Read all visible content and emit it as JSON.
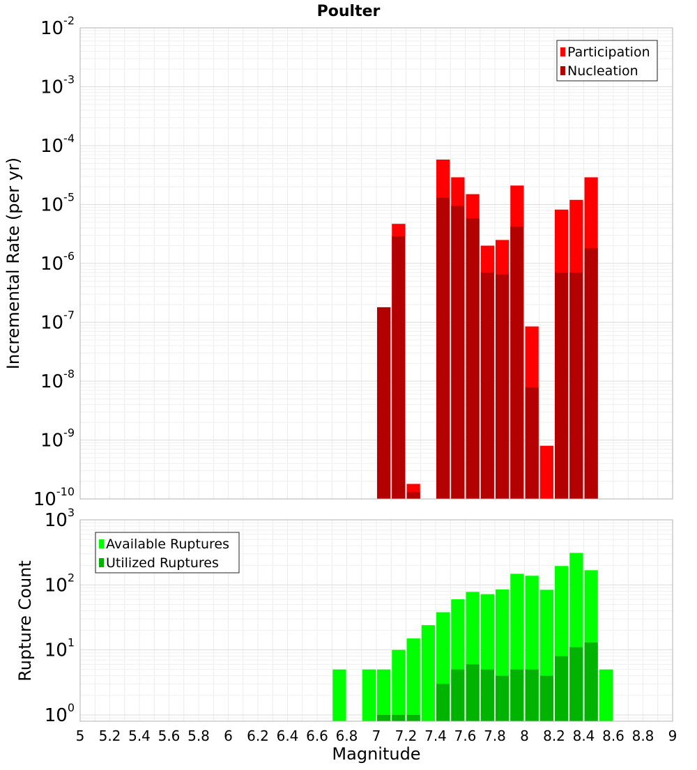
{
  "chart_data": [
    {
      "type": "bar",
      "title": "Poulter",
      "ylabel": "Incremental Rate (per yr)",
      "xlabel": "",
      "yscale": "log",
      "ylim": [
        1e-10,
        0.01
      ],
      "xlim": [
        5,
        9
      ],
      "bar_width": 0.1,
      "grid": true,
      "legend_position": "top-right",
      "x_tick_labels_shown": false,
      "y_tick_labels": [
        "10^-10",
        "10^-9",
        "10^-8",
        "10^-7",
        "10^-6",
        "10^-5",
        "10^-4",
        "10^-3",
        "10^-2"
      ],
      "series": [
        {
          "name": "Participation",
          "color": "#ff0000",
          "points": [
            {
              "x": 7.0,
              "y": 1.8e-07
            },
            {
              "x": 7.1,
              "y": 4.7e-06
            },
            {
              "x": 7.2,
              "y": 1.8e-10
            },
            {
              "x": 7.4,
              "y": 5.8e-05
            },
            {
              "x": 7.5,
              "y": 2.9e-05
            },
            {
              "x": 7.6,
              "y": 1.5e-05
            },
            {
              "x": 7.7,
              "y": 2e-06
            },
            {
              "x": 7.8,
              "y": 2.5e-06
            },
            {
              "x": 7.9,
              "y": 2.1e-05
            },
            {
              "x": 8.0,
              "y": 8.5e-08
            },
            {
              "x": 8.1,
              "y": 8e-10
            },
            {
              "x": 8.2,
              "y": 8.2e-06
            },
            {
              "x": 8.3,
              "y": 1.2e-05
            },
            {
              "x": 8.4,
              "y": 2.9e-05
            }
          ]
        },
        {
          "name": "Nucleation",
          "color": "#b30000",
          "points": [
            {
              "x": 7.0,
              "y": 1.8e-07
            },
            {
              "x": 7.1,
              "y": 2.9e-06
            },
            {
              "x": 7.2,
              "y": 1.3e-10
            },
            {
              "x": 7.4,
              "y": 1.3e-05
            },
            {
              "x": 7.5,
              "y": 9.5e-06
            },
            {
              "x": 7.6,
              "y": 5.8e-06
            },
            {
              "x": 7.7,
              "y": 7e-07
            },
            {
              "x": 7.8,
              "y": 6.5e-07
            },
            {
              "x": 7.9,
              "y": 4.2e-06
            },
            {
              "x": 8.0,
              "y": 7.8e-09
            },
            {
              "x": 8.2,
              "y": 7e-07
            },
            {
              "x": 8.3,
              "y": 7e-07
            },
            {
              "x": 8.4,
              "y": 1.8e-06
            }
          ]
        }
      ]
    },
    {
      "type": "bar",
      "title": "",
      "ylabel": "Rupture Count",
      "xlabel": "Magnitude",
      "yscale": "log",
      "ylim": [
        0.8,
        1000
      ],
      "xlim": [
        5,
        9
      ],
      "bar_width": 0.1,
      "grid": true,
      "legend_position": "top-left",
      "x_tick_labels": [
        "5",
        "5.2",
        "5.4",
        "5.6",
        "5.8",
        "6",
        "6.2",
        "6.4",
        "6.6",
        "6.8",
        "7",
        "7.2",
        "7.4",
        "7.6",
        "7.8",
        "8",
        "8.2",
        "8.4",
        "8.6",
        "8.8",
        "9"
      ],
      "y_tick_labels": [
        "10^0",
        "10^1",
        "10^2",
        "10^3"
      ],
      "series": [
        {
          "name": "Available Ruptures",
          "color": "#00ff00",
          "points": [
            {
              "x": 6.7,
              "y": 5
            },
            {
              "x": 6.9,
              "y": 5
            },
            {
              "x": 7.0,
              "y": 5
            },
            {
              "x": 7.1,
              "y": 10
            },
            {
              "x": 7.2,
              "y": 15
            },
            {
              "x": 7.3,
              "y": 24
            },
            {
              "x": 7.4,
              "y": 38
            },
            {
              "x": 7.5,
              "y": 60
            },
            {
              "x": 7.6,
              "y": 78
            },
            {
              "x": 7.7,
              "y": 72
            },
            {
              "x": 7.8,
              "y": 85
            },
            {
              "x": 7.9,
              "y": 148
            },
            {
              "x": 8.0,
              "y": 138
            },
            {
              "x": 8.1,
              "y": 84
            },
            {
              "x": 8.2,
              "y": 195
            },
            {
              "x": 8.3,
              "y": 310
            },
            {
              "x": 8.4,
              "y": 168
            },
            {
              "x": 8.5,
              "y": 5
            }
          ]
        },
        {
          "name": "Utilized Ruptures",
          "color": "#00b300",
          "points": [
            {
              "x": 7.0,
              "y": 1
            },
            {
              "x": 7.1,
              "y": 1
            },
            {
              "x": 7.2,
              "y": 1
            },
            {
              "x": 7.4,
              "y": 3
            },
            {
              "x": 7.5,
              "y": 5
            },
            {
              "x": 7.6,
              "y": 6
            },
            {
              "x": 7.7,
              "y": 5
            },
            {
              "x": 7.8,
              "y": 4
            },
            {
              "x": 7.9,
              "y": 5
            },
            {
              "x": 8.0,
              "y": 5
            },
            {
              "x": 8.1,
              "y": 4
            },
            {
              "x": 8.2,
              "y": 8
            },
            {
              "x": 8.3,
              "y": 11
            },
            {
              "x": 8.4,
              "y": 13
            }
          ]
        }
      ]
    }
  ]
}
